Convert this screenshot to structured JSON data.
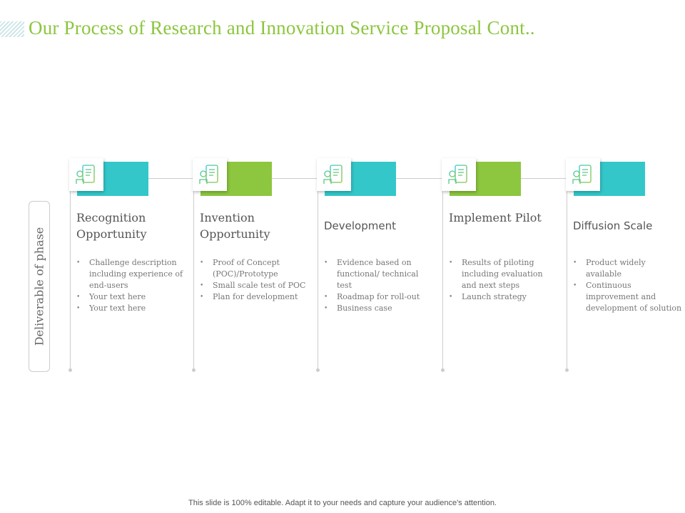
{
  "title": "Our Process of Research and Innovation Service Proposal Cont..",
  "side_label": "Deliverable of phase",
  "colors": {
    "teal": "#33c7c9",
    "green": "#8dc63f",
    "title": "#8cc63f"
  },
  "phases": [
    {
      "title": "Recognition Opportunity",
      "icon": "phone-idea-icon",
      "color": "#33c7c9",
      "bullets": [
        "Challenge description including experience of end-users",
        "Your text here",
        "Your text here"
      ]
    },
    {
      "title": "Invention Opportunity",
      "icon": "person-chart-dollar-icon",
      "color": "#8dc63f",
      "bullets": [
        "Proof of Concept (POC)/Prototype",
        "Small scale test of POC",
        "Plan for development"
      ]
    },
    {
      "title": "Development",
      "icon": "laptop-code-cloud-icon",
      "color": "#33c7c9",
      "bullets": [
        "Evidence based on functional/ technical test",
        "Roadmap for roll-out",
        "Business case"
      ]
    },
    {
      "title": "Implement Pilot",
      "icon": "person-lightbulb-icon",
      "color": "#8dc63f",
      "bullets": [
        "Results of piloting including evaluation and next steps",
        "Launch strategy"
      ]
    },
    {
      "title": "Diffusion Scale",
      "icon": "documents-icon",
      "color": "#33c7c9",
      "bullets": [
        "Product widely available",
        "Continuous improvement and development of solution"
      ]
    }
  ],
  "footer": "This slide is 100% editable. Adapt it to your needs and capture your audience's attention."
}
